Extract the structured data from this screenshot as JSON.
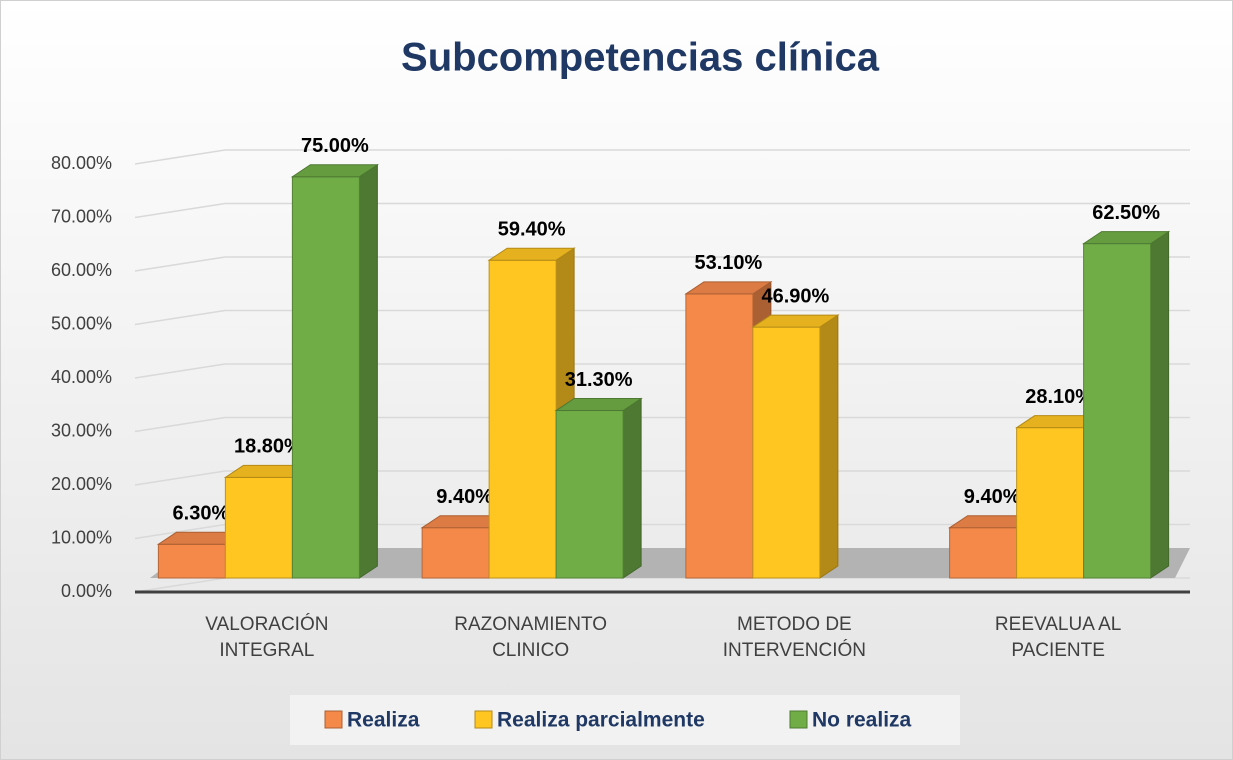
{
  "chart_data": {
    "type": "bar3d",
    "title": "Subcompetencias clínica",
    "categories": [
      "VALORACIÓN INTEGRAL",
      "RAZONAMIENTO CLINICO",
      "METODO DE INTERVENCIÓN",
      "REEVALUA AL PACIENTE"
    ],
    "series": [
      {
        "name": "Realiza",
        "color": "#f4894a",
        "values": [
          6.3,
          9.4,
          53.1,
          9.4
        ],
        "value_labels": [
          "6.30%",
          "9.40%",
          "53.10%",
          "9.40%"
        ]
      },
      {
        "name": "Realiza parcialmente",
        "color": "#ffc521",
        "values": [
          18.8,
          59.4,
          46.9,
          28.1
        ],
        "value_labels": [
          "18.80%",
          "59.40%",
          "46.90%",
          "28.10%"
        ]
      },
      {
        "name": "No realiza",
        "color": "#70ad47",
        "values": [
          75.0,
          31.3,
          null,
          62.5
        ],
        "value_labels": [
          "75.00%",
          "31.30%",
          null,
          "62.50%"
        ]
      }
    ],
    "ylim": [
      0,
      80
    ],
    "yticks": [
      {
        "value": 0,
        "label": "0.00%"
      },
      {
        "value": 10,
        "label": "10.00%"
      },
      {
        "value": 20,
        "label": "20.00%"
      },
      {
        "value": 30,
        "label": "30.00%"
      },
      {
        "value": 40,
        "label": "40.00%"
      },
      {
        "value": 50,
        "label": "50.00%"
      },
      {
        "value": 60,
        "label": "60.00%"
      },
      {
        "value": 70,
        "label": "70.00%"
      },
      {
        "value": 80,
        "label": "80.00%"
      }
    ],
    "grid": true,
    "legend": "bottom"
  }
}
